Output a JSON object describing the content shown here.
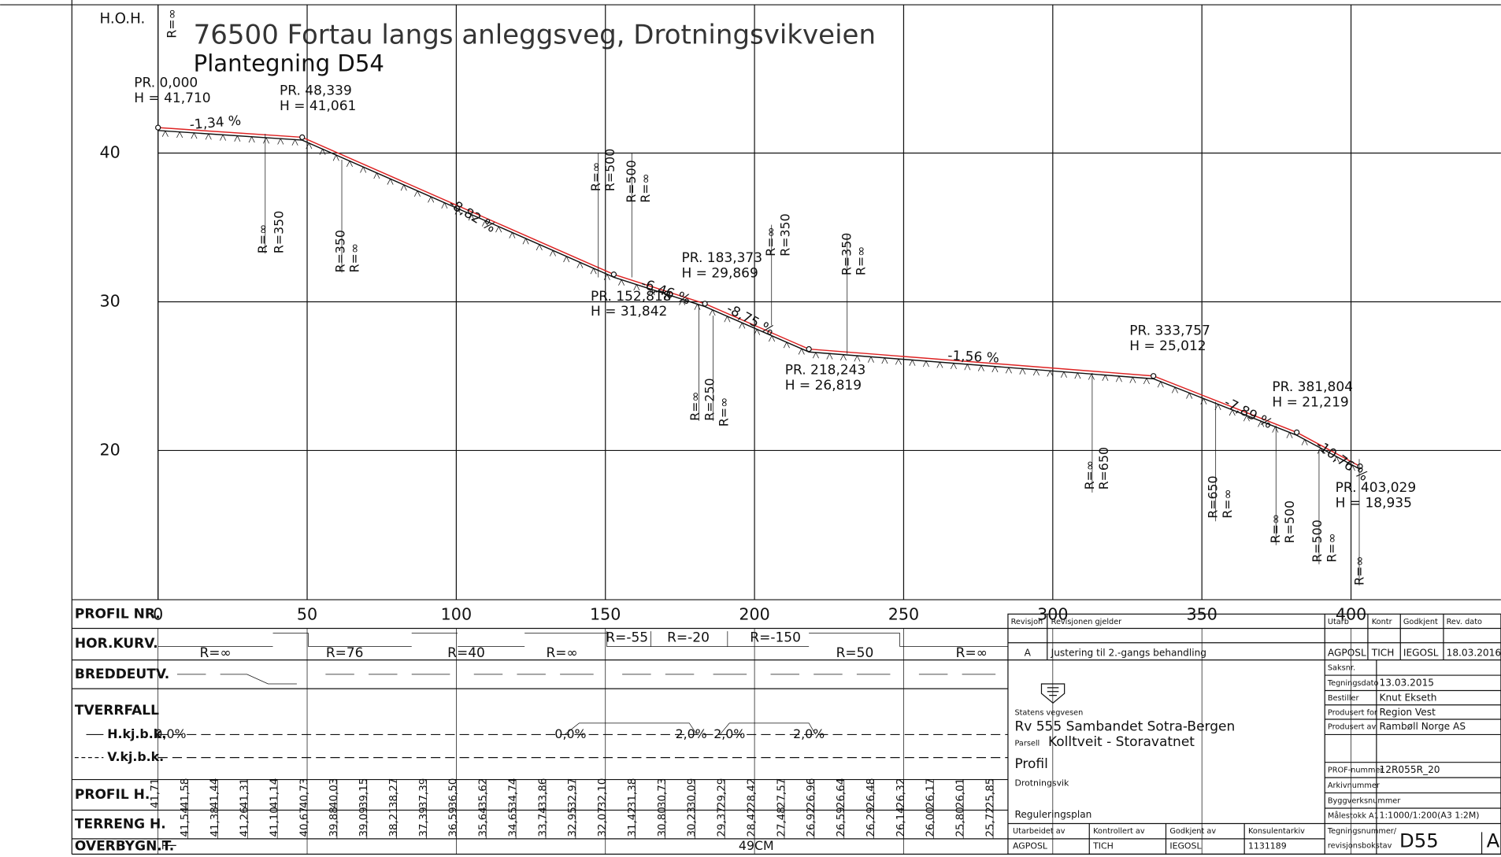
{
  "header": {
    "axis_label": "H.O.H.",
    "title": "76500 Fortau langs anleggsveg, Drotningsvikveien",
    "subtitle": "Plantegning D54"
  },
  "elevation_ticks": [
    40,
    30,
    20
  ],
  "station_ticks": [
    0,
    50,
    100,
    150,
    200,
    250,
    300,
    350,
    400
  ],
  "profile_points": [
    {
      "station": "PR. 0,000",
      "height": "H = 41,710",
      "pr": 0,
      "h": 41.71
    },
    {
      "station": "PR. 48,339",
      "height": "H = 41,061",
      "pr": 48.339,
      "h": 41.061
    },
    {
      "station": "PR. 152,818",
      "height": "H = 31,842",
      "pr": 152.818,
      "h": 31.842
    },
    {
      "station": "PR. 183,373",
      "height": "H = 29,869",
      "pr": 183.373,
      "h": 29.869
    },
    {
      "station": "PR. 218,243",
      "height": "H = 26,819",
      "pr": 218.243,
      "h": 26.819
    },
    {
      "station": "PR. 333,757",
      "height": "H = 25,012",
      "pr": 333.757,
      "h": 25.012
    },
    {
      "station": "PR. 381,804",
      "height": "H = 21,219",
      "pr": 381.804,
      "h": 21.219
    },
    {
      "station": "PR. 403,029",
      "height": "H = 18,935",
      "pr": 403.029,
      "h": 18.935
    }
  ],
  "grades": [
    "-1,34 %",
    "-8,82 %",
    "-6,46 %",
    "-8,75 %",
    "-1,56 %",
    "-7,89 %",
    "-10,76 %"
  ],
  "vertical_curves": [
    "R=∞",
    "R=∞",
    "R=350",
    "R=350",
    "R=∞",
    "R=∞",
    "R=500",
    "R=500",
    "R=∞",
    "R=∞",
    "R=250",
    "R=∞",
    "R=∞",
    "R=350",
    "R=350",
    "R=∞",
    "R=∞",
    "R=650",
    "R=650",
    "R=∞",
    "R=∞",
    "R=500",
    "R=500",
    "R=∞",
    "R=∞"
  ],
  "rows": {
    "profil_nr": "PROFIL NR.",
    "hor_kurv": "HOR.KURV.",
    "breddeutv": "BREDDEUTV.",
    "tverrfall": "TVERRFALL",
    "h_kj": "H.kj.b.k.",
    "v_kj": "V.kj.b.k.",
    "profil_h": "PROFIL H.",
    "terreng_h": "TERRENG H.",
    "overbygn": "OVERBYGN.T."
  },
  "hor_kurv": [
    "R=∞",
    "R=76",
    "R=40",
    "R=∞",
    "R=-55",
    "R=-20",
    "R=-150",
    "R=50",
    "R=∞"
  ],
  "tverrfall": [
    "0,0%",
    "0,0%",
    "2,0%",
    "2,0%",
    "2,0%"
  ],
  "profil_h": [
    "41,71",
    "41,58",
    "41,44",
    "41,31",
    "41,14",
    "40,73",
    "40,03",
    "39,15",
    "38,27",
    "37,39",
    "36,50",
    "35,62",
    "34,74",
    "33,86",
    "32,97",
    "32,10",
    "31,38",
    "30,73",
    "30,09",
    "29,29",
    "28,42",
    "27,57",
    "26,96",
    "26,64",
    "26,48",
    "26,32",
    "26,17",
    "26,01",
    "25,85"
  ],
  "terreng_h": [
    "41,54",
    "41,38",
    "41,26",
    "41,10",
    "40,67",
    "39,88",
    "39,09",
    "38,21",
    "37,39",
    "36,59",
    "35,64",
    "34,65",
    "33,74",
    "32,95",
    "32,07",
    "31,42",
    "30,80",
    "30,23",
    "29,37",
    "28,42",
    "27,48",
    "26,92",
    "26,59",
    "26,29",
    "26,14",
    "26,00",
    "25,80",
    "25,72"
  ],
  "overbygn_t": "49CM",
  "title_block": {
    "revisjon": "Revisjon",
    "revisjonen_gjelder": "Revisjonen gjelder",
    "rev": "A",
    "rev_text": "Justering til 2.-gangs behandling",
    "utarb": "Utarb",
    "kontr": "Kontr",
    "godkjent": "Godkjent",
    "rev_dato": "Rev. dato",
    "utarb_v": "AGPOSL",
    "kontr_v": "TICH",
    "godkjent_v": "IEGOSL",
    "rev_dato_v": "18.03.2016",
    "saksnr": "Saksnr.",
    "tegningsdato": "Tegningsdato",
    "tegningsdato_v": "13.03.2015",
    "bestiller": "Bestiller",
    "bestiller_v": "Knut Ekseth",
    "produsert_for": "Produsert for",
    "produsert_for_v": "Region Vest",
    "produsert_av": "Produsert av",
    "produsert_av_v": "Rambøll Norge AS",
    "org": "Statens vegvesen",
    "project": "Rv 555 Sambandet Sotra-Bergen",
    "parsell": "Parsell",
    "parsell_v": "Kolltveit - Storavatnet",
    "drawing": "Profil",
    "place": "Drotningsvik",
    "plan": "Reguleringsplan",
    "prof_nummer": "PROF-nummer",
    "prof_nummer_v": "12R055R_20",
    "arkivnummer": "Arkivnummer",
    "byggverksnummer": "Byggverksnummer",
    "malestokk": "Målestokk A1",
    "malestokk_v": "1:1000/1:200(A3 1:2M)",
    "tegningsnummer": "Tegningsnummer/",
    "revisjonsbokstav": "revisjonsbokstav",
    "tegningsnummer_v": "D55",
    "rev_letter": "A",
    "utarbeidet_av": "Utarbeidet av",
    "utarbeidet_av_v": "AGPOSL",
    "kontrollert_av": "Kontrollert av",
    "kontrollert_av_v": "TICH",
    "godkjent_av": "Godkjent av",
    "godkjent_av_v": "IEGOSL",
    "konsulentarkiv": "Konsulentarkiv",
    "konsulentarkiv_v": "1131189"
  }
}
